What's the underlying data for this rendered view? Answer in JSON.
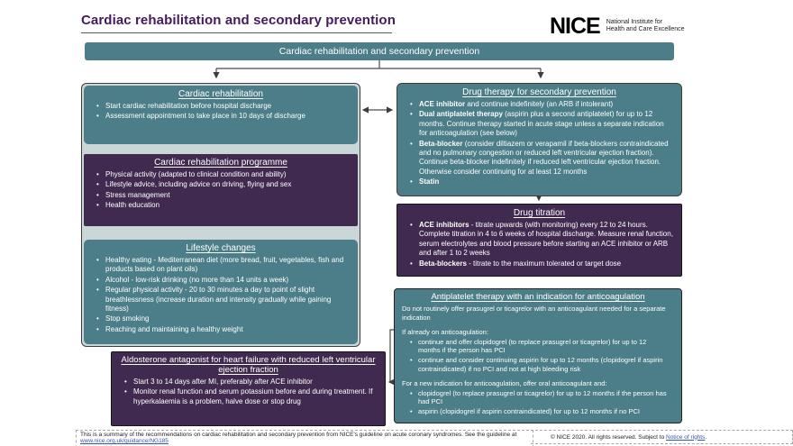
{
  "page": {
    "title": "Cardiac rehabilitation and secondary prevention",
    "banner": "Cardiac rehabilitation and secondary prevention"
  },
  "logo": {
    "wordmark": "NICE",
    "tagline_line1": "National Institute for",
    "tagline_line2": "Health and Care Excellence"
  },
  "colors": {
    "teal": "#4b7e88",
    "purple": "#412a50",
    "panel_background": "#cbd6d7",
    "title_purple": "#441a5f",
    "link_blue": "#3355bb"
  },
  "left_column": {
    "cardiac_rehabilitation": {
      "header": "Cardiac rehabilitation",
      "bullets": [
        "Start cardiac rehabilitation before hospital discharge",
        "Assessment appointment to take place in 10 days of discharge"
      ]
    },
    "programme": {
      "header": "Cardiac rehabilitation programme",
      "bullets": [
        "Physical activity (adapted to clinical condition and ability)",
        "Lifestyle advice, including advice on driving, flying and sex",
        "Stress management",
        "Health education"
      ]
    },
    "lifestyle_changes": {
      "header": "Lifestyle changes",
      "bullets": [
        "Healthy eating - Mediterranean diet (more bread, fruit, vegetables, fish and products based on plant oils)",
        "Alcohol - low-risk drinking (no more than 14 units a week)",
        "Regular physical activity - 20 to 30 minutes a day to point of slight breathlessness (increase duration and intensity gradually while gaining fitness)",
        "Stop smoking",
        "Reaching and maintaining a healthy weight"
      ]
    }
  },
  "aldosterone": {
    "header": "Aldosterone antagonist for heart failure with reduced left ventricular ejection fraction",
    "bullets": [
      "Start 3 to 14 days after MI, preferably after ACE inhibitor",
      "Monitor renal function and serum potassium before and during treatment. If hyperkalaemia is a problem, halve dose or stop drug"
    ]
  },
  "right_column": {
    "drug_therapy": {
      "header": "Drug therapy for secondary prevention",
      "bullets": [
        {
          "b": "ACE inhibitor",
          "t": " and continue indefinitely (an ARB if intolerant)"
        },
        {
          "b": "Dual antiplatelet therapy",
          "t": " (aspirin plus a second antiplatelet) for up to 12 months. Continue therapy started in acute stage unless a separate indication for anticoagulation (see below)"
        },
        {
          "b": "Beta-blocker",
          "t": " (consider diltiazem or verapamil if beta-blockers contraindicated and no pulmonary congestion or reduced left ventricular ejection fraction). Continue beta-blocker indefinitely if reduced left ventricular ejection fraction. Otherwise consider continuing for at least 12 months"
        },
        {
          "b": "Statin",
          "t": ""
        }
      ]
    },
    "drug_titration": {
      "header": "Drug titration",
      "bullets": [
        {
          "b": "ACE inhibitors",
          "t": " - titrate upwards (with monitoring) every 12 to 24 hours. Complete titration in 4 to 6 weeks of hospital discharge. Measure renal function, serum electrolytes and blood pressure before starting an ACE inhibitor or ARB and after 1 to 2 weeks"
        },
        {
          "b": "Beta-blockers",
          "t": " - titrate to the maximum tolerated or target dose"
        }
      ]
    },
    "antiplatelet": {
      "header": "Antiplatelet therapy with an indication for anticoagulation",
      "intro": "Do not routinely offer prasugrel or ticagrelor with an anticoagulant needed for a separate indication",
      "already_label": "If already on anticoagulation:",
      "already_bullets": [
        "continue and offer clopidogrel (to replace prasugrel or ticagrelor) for up to 12 months if the person has PCI",
        "continue and consider continuing aspirin for up to 12 months (clopidogrel if aspirin contraindicated) if no PCI and not at high bleeding risk"
      ],
      "new_label": "For a new indication for anticoagulation, offer oral anticoagulant and:",
      "new_bullets": [
        "clopidogrel (to replace prasugrel or ticagrelor) for up to 12 months if the person has had PCI",
        "aspirin (clopidogrel if aspirin contraindicated) for up to 12 months if no PCI"
      ]
    }
  },
  "footer": {
    "summary_text": "This is a summary of the recommendations on cardiac rehabilitation and secondary prevention from NICE's guideline on acute coronary syndromes. See the guideline at ",
    "summary_link": "www.nice.org.uk/guidance/NG185",
    "copyright_text": "© NICE 2020. All rights reserved. Subject to ",
    "copyright_link": "Notice of rights",
    "copyright_suffix": "."
  }
}
